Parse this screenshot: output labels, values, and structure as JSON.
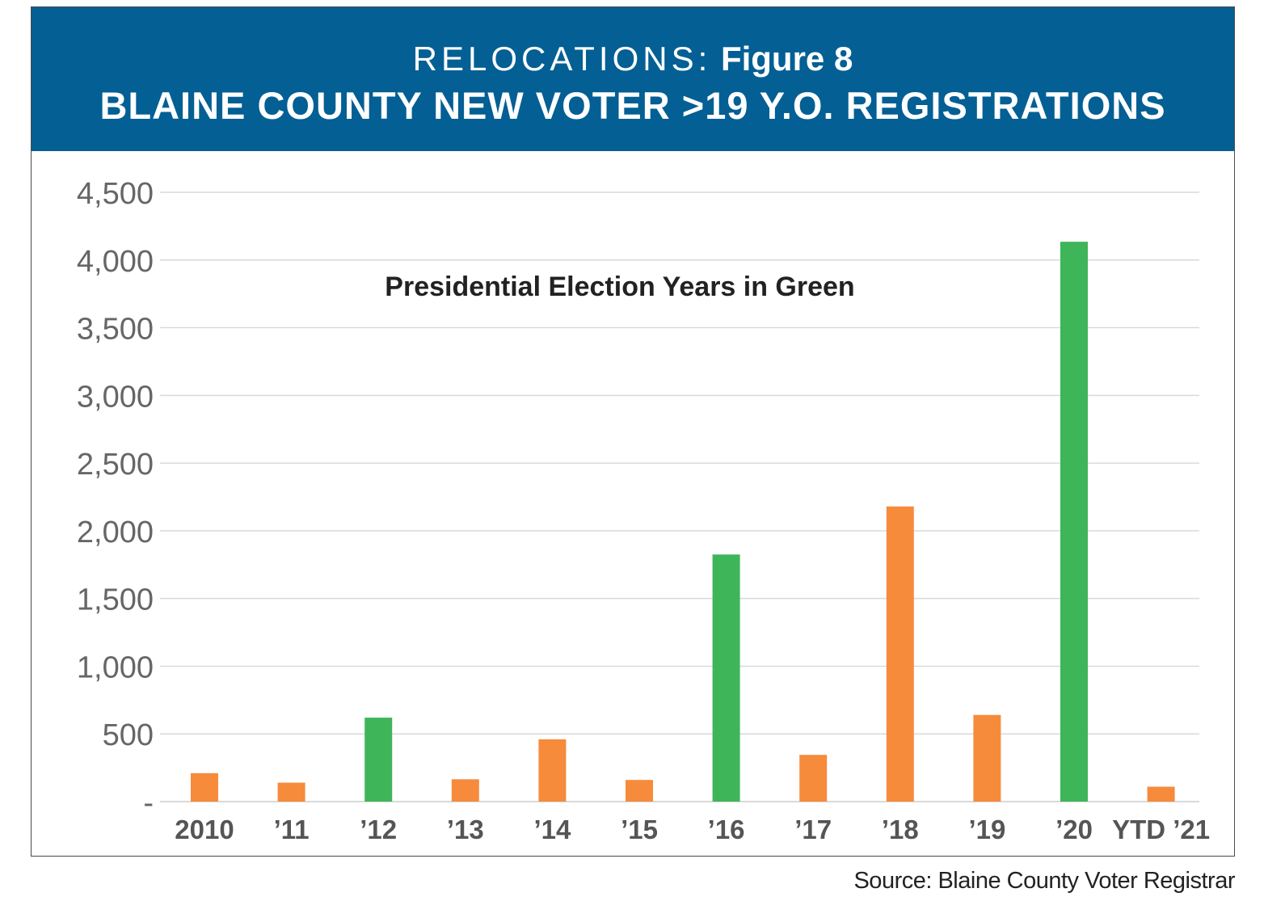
{
  "header": {
    "kicker": "RELOCATIONS:",
    "figure_label": "Figure 8",
    "title": "BLAINE COUNTY NEW VOTER >19 Y.O. REGISTRATIONS"
  },
  "annotation": "Presidential Election Years in Green",
  "source": "Source: Blaine County Voter Registrar",
  "colors": {
    "header_bg": "#035f94",
    "presidential": "#3fb55a",
    "other": "#f68b3c",
    "gridline": "#d9d9d9",
    "tick_text": "#666666",
    "category_text": "#555555"
  },
  "chart_data": {
    "type": "bar",
    "title": "BLAINE COUNTY NEW VOTER >19 Y.O. REGISTRATIONS",
    "xlabel": "",
    "ylabel": "",
    "ylim": [
      0,
      4500
    ],
    "yticks": [
      0,
      500,
      1000,
      1500,
      2000,
      2500,
      3000,
      3500,
      4000,
      4500
    ],
    "ytick_labels": [
      "-",
      "500",
      "1,000",
      "1,500",
      "2,000",
      "2,500",
      "3,000",
      "3,500",
      "4,000",
      "4,500"
    ],
    "grid": true,
    "categories": [
      "2010",
      "’11",
      "’12",
      "’13",
      "’14",
      "’15",
      "’16",
      "’17",
      "’18",
      "’19",
      "’20",
      "YTD ’21"
    ],
    "values": [
      210,
      140,
      620,
      165,
      460,
      160,
      1825,
      345,
      2180,
      640,
      4135,
      110
    ],
    "presidential_year": [
      false,
      false,
      true,
      false,
      false,
      false,
      true,
      false,
      false,
      false,
      true,
      false
    ],
    "annotation": "Presidential Election Years in Green"
  }
}
